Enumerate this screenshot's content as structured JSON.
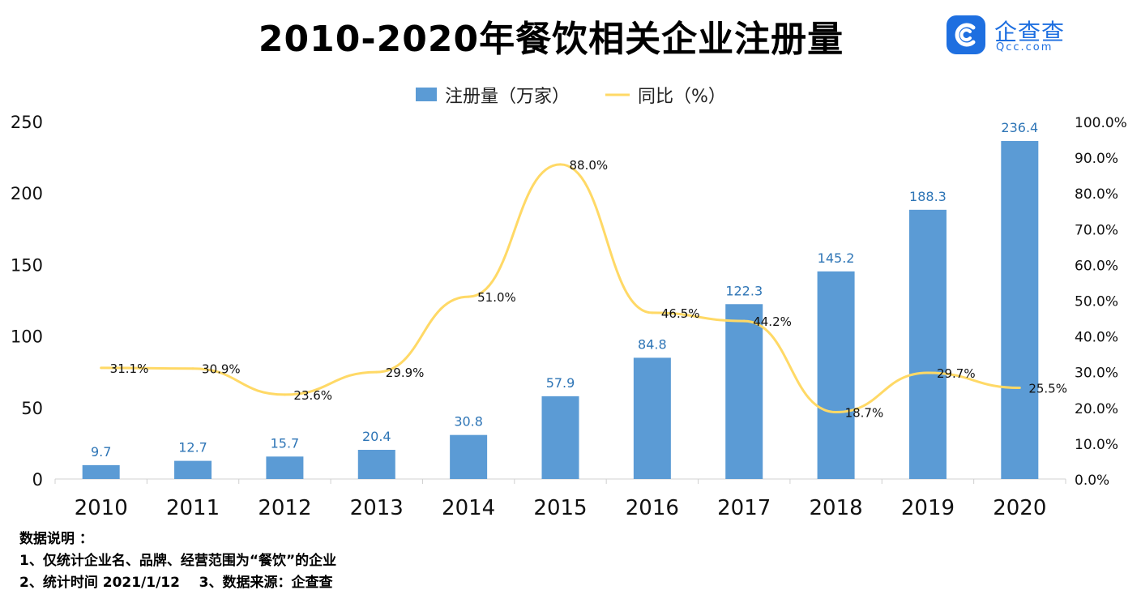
{
  "title": "2010-2020年餐饮相关企业注册量",
  "logo": {
    "name": "企查查",
    "domain": "Qcc.com"
  },
  "notes": {
    "heading": "数据说明 ：",
    "line1": "1、仅统计企业名、品牌、经营范围为“餐饮”的企业",
    "line2": "2、统计时间 2021/1/12    3、数据来源：企查查"
  },
  "colors": {
    "bar": "#5b9bd5",
    "line": "#ffd966",
    "bar_label": "#2e75b6",
    "logo": "#1e6fe0"
  },
  "chart_data": {
    "type": "bar",
    "categories": [
      "2010",
      "2011",
      "2012",
      "2013",
      "2014",
      "2015",
      "2016",
      "2017",
      "2018",
      "2019",
      "2020"
    ],
    "series": [
      {
        "name": "注册量（万家）",
        "type": "bar",
        "axis": "left",
        "values": [
          9.7,
          12.7,
          15.7,
          20.4,
          30.8,
          57.9,
          84.8,
          122.3,
          145.2,
          188.3,
          236.4
        ],
        "labels": [
          "9.7",
          "12.7",
          "15.7",
          "20.4",
          "30.8",
          "57.9",
          "84.8",
          "122.3",
          "145.2",
          "188.3",
          "236.4"
        ]
      },
      {
        "name": "同比（%）",
        "type": "line",
        "axis": "right",
        "values": [
          31.1,
          30.9,
          23.6,
          29.9,
          51.0,
          88.0,
          46.5,
          44.2,
          18.7,
          29.7,
          25.5
        ],
        "labels": [
          "31.1%",
          "30.9%",
          "23.6%",
          "29.9%",
          "51.0%",
          "88.0%",
          "46.5%",
          "44.2%",
          "18.7%",
          "29.7%",
          "25.5%"
        ]
      }
    ],
    "y_left": {
      "range": [
        0,
        250
      ],
      "ticks": [
        "0",
        "50",
        "100",
        "150",
        "200",
        "250"
      ]
    },
    "y_right": {
      "range": [
        0,
        100
      ],
      "ticks": [
        "0.0%",
        "10.0%",
        "20.0%",
        "30.0%",
        "40.0%",
        "50.0%",
        "60.0%",
        "70.0%",
        "80.0%",
        "90.0%",
        "100.0%"
      ]
    },
    "legend_position": "top-center",
    "grid": false
  }
}
